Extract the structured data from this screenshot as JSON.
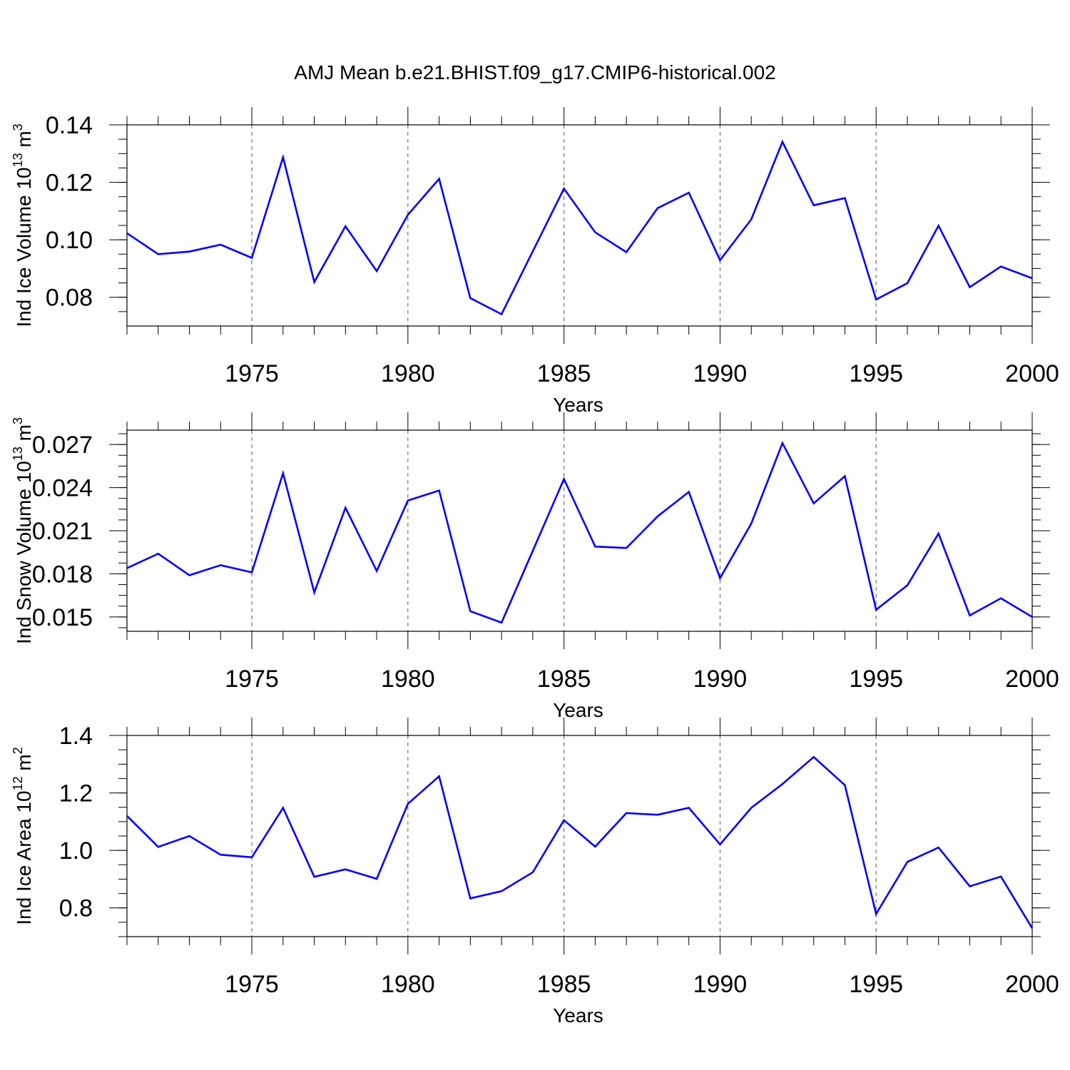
{
  "title": "AMJ Mean b.e21.BHIST.f09_g17.CMIP6-historical.002",
  "line_color": "#0000ff",
  "chart_data": [
    {
      "type": "line",
      "xlabel": "Years",
      "ylabel_main": "Ind Ice Volume 10",
      "ylabel_exp1": "13",
      "ylabel_unit": " m",
      "ylabel_exp2": "3",
      "xlim": [
        1971,
        2000
      ],
      "ylim": [
        0.07,
        0.14
      ],
      "x_ticks": [
        1975,
        1980,
        1985,
        1990,
        1995,
        2000
      ],
      "y_ticks": [
        0.08,
        0.1,
        0.12,
        0.14
      ],
      "y_tick_labels": [
        "0.08",
        "0.10",
        "0.12",
        "0.14"
      ],
      "x": [
        1971,
        1972,
        1973,
        1974,
        1975,
        1976,
        1977,
        1978,
        1979,
        1980,
        1981,
        1982,
        1983,
        1984,
        1985,
        1986,
        1987,
        1988,
        1989,
        1990,
        1991,
        1992,
        1993,
        1994,
        1995,
        1996,
        1997,
        1998,
        1999,
        2000
      ],
      "values": [
        0.1023,
        0.095,
        0.0959,
        0.0983,
        0.0937,
        0.1287,
        0.0853,
        0.1047,
        0.0891,
        0.1087,
        0.1212,
        0.0797,
        0.0741,
        0.096,
        0.1178,
        0.1026,
        0.0957,
        0.111,
        0.1164,
        0.0929,
        0.1071,
        0.1341,
        0.112,
        0.1145,
        0.0792,
        0.0849,
        0.1049,
        0.0835,
        0.0907,
        0.0866
      ]
    },
    {
      "type": "line",
      "xlabel": "Years",
      "ylabel_main": "Ind Snow Volume 10",
      "ylabel_exp1": "13",
      "ylabel_unit": " m",
      "ylabel_exp2": "3",
      "xlim": [
        1971,
        2000
      ],
      "ylim": [
        0.014,
        0.028
      ],
      "x_ticks": [
        1975,
        1980,
        1985,
        1990,
        1995,
        2000
      ],
      "y_ticks": [
        0.015,
        0.018,
        0.021,
        0.024,
        0.027
      ],
      "y_tick_labels": [
        "0.015",
        "0.018",
        "0.021",
        "0.024",
        "0.027"
      ],
      "x": [
        1971,
        1972,
        1973,
        1974,
        1975,
        1976,
        1977,
        1978,
        1979,
        1980,
        1981,
        1982,
        1983,
        1984,
        1985,
        1986,
        1987,
        1988,
        1989,
        1990,
        1991,
        1992,
        1993,
        1994,
        1995,
        1996,
        1997,
        1998,
        1999,
        2000
      ],
      "values": [
        0.0184,
        0.0194,
        0.0179,
        0.0186,
        0.0181,
        0.025,
        0.0167,
        0.0226,
        0.0182,
        0.0231,
        0.0238,
        0.0154,
        0.0146,
        0.0196,
        0.0246,
        0.0199,
        0.0198,
        0.022,
        0.0237,
        0.0177,
        0.0215,
        0.0271,
        0.0229,
        0.0248,
        0.0155,
        0.0172,
        0.0208,
        0.0151,
        0.0163,
        0.015
      ]
    },
    {
      "type": "line",
      "xlabel": "Years",
      "ylabel_main": "Ind Ice Area 10",
      "ylabel_exp1": "12",
      "ylabel_unit": " m",
      "ylabel_exp2": "2",
      "xlim": [
        1971,
        2000
      ],
      "ylim": [
        0.7,
        1.4
      ],
      "x_ticks": [
        1975,
        1980,
        1985,
        1990,
        1995,
        2000
      ],
      "y_ticks": [
        0.8,
        1.0,
        1.2,
        1.4
      ],
      "y_tick_labels": [
        "0.8",
        "1.0",
        "1.2",
        "1.4"
      ],
      "x": [
        1971,
        1972,
        1973,
        1974,
        1975,
        1976,
        1977,
        1978,
        1979,
        1980,
        1981,
        1982,
        1983,
        1984,
        1985,
        1986,
        1987,
        1988,
        1989,
        1990,
        1991,
        1992,
        1993,
        1994,
        1995,
        1996,
        1997,
        1998,
        1999,
        2000
      ],
      "values": [
        1.12,
        1.012,
        1.05,
        0.985,
        0.976,
        1.148,
        0.908,
        0.934,
        0.901,
        1.162,
        1.258,
        0.833,
        0.858,
        0.924,
        1.105,
        1.013,
        1.13,
        1.124,
        1.148,
        1.021,
        1.148,
        1.231,
        1.325,
        1.227,
        0.779,
        0.96,
        1.01,
        0.875,
        0.909,
        0.729
      ]
    }
  ]
}
